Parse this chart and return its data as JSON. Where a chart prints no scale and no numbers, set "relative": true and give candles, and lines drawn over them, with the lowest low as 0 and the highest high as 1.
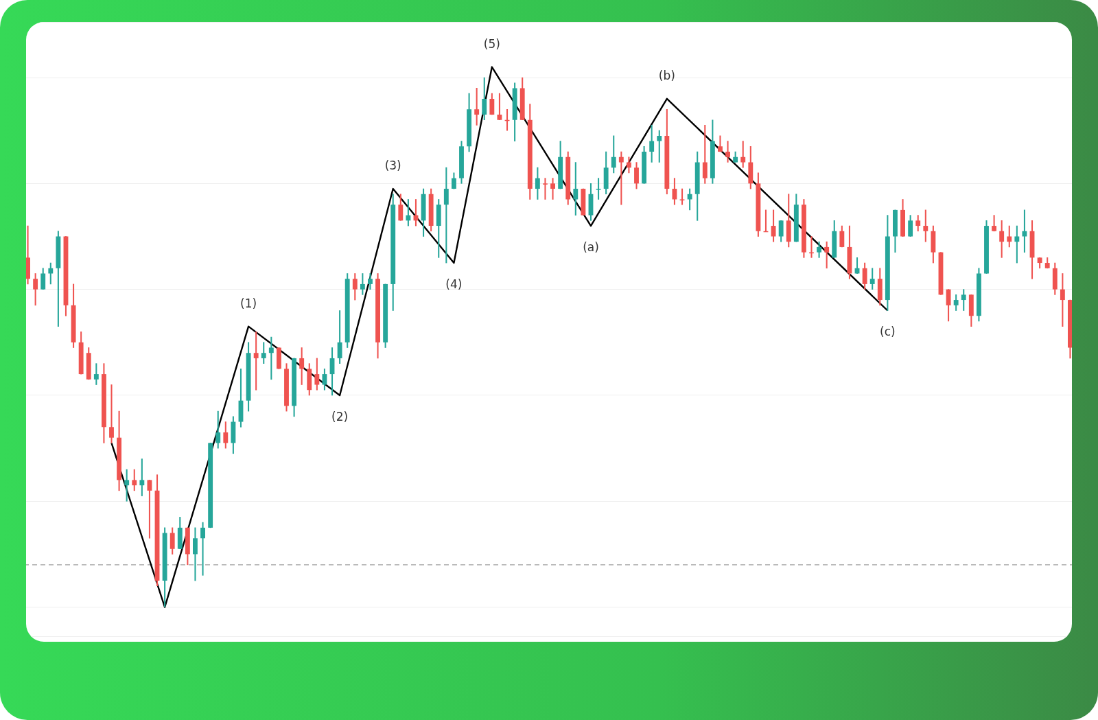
{
  "chart_data": {
    "type": "candlestick",
    "relative": true,
    "grid": "y",
    "legend": false,
    "categories": [
      null,
      null,
      null,
      null,
      null,
      null,
      null,
      null,
      null,
      null,
      null,
      null,
      null,
      null,
      null,
      null,
      null,
      null,
      null,
      null,
      null,
      null,
      null,
      null,
      null,
      null,
      null,
      null,
      null,
      null,
      null,
      null,
      null,
      null,
      null,
      null,
      null,
      null,
      null,
      null,
      null,
      null,
      null,
      null,
      null,
      null,
      null,
      null,
      null,
      null,
      null,
      null,
      null,
      null,
      null,
      null,
      null,
      null,
      null,
      null,
      null,
      null,
      null,
      null,
      null,
      null,
      null,
      null,
      null,
      null,
      null,
      null,
      null,
      null,
      null,
      null,
      null,
      null,
      null,
      null,
      null,
      null,
      null,
      null,
      null,
      null,
      null,
      null,
      null,
      null,
      null,
      null,
      null,
      null,
      null,
      null,
      null,
      null,
      null,
      null,
      null,
      null,
      null,
      null,
      null,
      null,
      null,
      null,
      null,
      null,
      null,
      null,
      null,
      null,
      null,
      null,
      null,
      null,
      null,
      null,
      null,
      null,
      null,
      null,
      null,
      null,
      null,
      null,
      null,
      null,
      null,
      null,
      null,
      null,
      null,
      null,
      null,
      null
    ],
    "ohlc": [
      [
        0.66,
        0.72,
        0.61,
        0.62
      ],
      [
        0.62,
        0.63,
        0.57,
        0.6
      ],
      [
        0.6,
        0.64,
        0.6,
        0.63
      ],
      [
        0.63,
        0.65,
        0.61,
        0.64
      ],
      [
        0.64,
        0.71,
        0.53,
        0.7
      ],
      [
        0.7,
        0.7,
        0.55,
        0.57
      ],
      [
        0.57,
        0.61,
        0.49,
        0.5
      ],
      [
        0.5,
        0.52,
        0.44,
        0.44
      ],
      [
        0.48,
        0.49,
        0.43,
        0.43
      ],
      [
        0.43,
        0.46,
        0.42,
        0.44
      ],
      [
        0.44,
        0.46,
        0.31,
        0.34
      ],
      [
        0.34,
        0.42,
        0.31,
        0.32
      ],
      [
        0.32,
        0.37,
        0.22,
        0.24
      ],
      [
        0.23,
        0.26,
        0.2,
        0.24
      ],
      [
        0.24,
        0.26,
        0.22,
        0.23
      ],
      [
        0.23,
        0.28,
        0.21,
        0.24
      ],
      [
        0.24,
        0.24,
        0.13,
        0.22
      ],
      [
        0.22,
        0.25,
        0.04,
        0.05
      ],
      [
        0.05,
        0.15,
        0.0,
        0.14
      ],
      [
        0.14,
        0.15,
        0.1,
        0.11
      ],
      [
        0.11,
        0.17,
        0.11,
        0.15
      ],
      [
        0.15,
        0.15,
        0.08,
        0.1
      ],
      [
        0.1,
        0.15,
        0.05,
        0.13
      ],
      [
        0.13,
        0.16,
        0.06,
        0.15
      ],
      [
        0.15,
        0.31,
        0.15,
        0.31
      ],
      [
        0.31,
        0.37,
        0.3,
        0.33
      ],
      [
        0.33,
        0.35,
        0.3,
        0.31
      ],
      [
        0.31,
        0.36,
        0.29,
        0.35
      ],
      [
        0.35,
        0.45,
        0.34,
        0.39
      ],
      [
        0.39,
        0.5,
        0.37,
        0.48
      ],
      [
        0.48,
        0.52,
        0.41,
        0.47
      ],
      [
        0.47,
        0.5,
        0.46,
        0.48
      ],
      [
        0.48,
        0.51,
        0.43,
        0.49
      ],
      [
        0.49,
        0.49,
        0.45,
        0.45
      ],
      [
        0.45,
        0.46,
        0.37,
        0.38
      ],
      [
        0.38,
        0.47,
        0.36,
        0.47
      ],
      [
        0.47,
        0.49,
        0.42,
        0.45
      ],
      [
        0.45,
        0.46,
        0.4,
        0.41
      ],
      [
        0.44,
        0.47,
        0.41,
        0.42
      ],
      [
        0.42,
        0.45,
        0.41,
        0.44
      ],
      [
        0.44,
        0.49,
        0.4,
        0.47
      ],
      [
        0.47,
        0.56,
        0.46,
        0.5
      ],
      [
        0.5,
        0.63,
        0.49,
        0.62
      ],
      [
        0.62,
        0.63,
        0.58,
        0.6
      ],
      [
        0.6,
        0.63,
        0.59,
        0.61
      ],
      [
        0.61,
        0.63,
        0.6,
        0.62
      ],
      [
        0.62,
        0.63,
        0.47,
        0.5
      ],
      [
        0.5,
        0.61,
        0.49,
        0.61
      ],
      [
        0.61,
        0.78,
        0.56,
        0.76
      ],
      [
        0.76,
        0.78,
        0.73,
        0.73
      ],
      [
        0.73,
        0.77,
        0.72,
        0.74
      ],
      [
        0.74,
        0.77,
        0.72,
        0.73
      ],
      [
        0.73,
        0.79,
        0.7,
        0.78
      ],
      [
        0.78,
        0.79,
        0.71,
        0.72
      ],
      [
        0.72,
        0.77,
        0.66,
        0.76
      ],
      [
        0.76,
        0.83,
        0.65,
        0.79
      ],
      [
        0.79,
        0.82,
        0.79,
        0.81
      ],
      [
        0.81,
        0.88,
        0.8,
        0.87
      ],
      [
        0.87,
        0.97,
        0.86,
        0.94
      ],
      [
        0.94,
        0.98,
        0.91,
        0.93
      ],
      [
        0.93,
        1.0,
        0.92,
        0.96
      ],
      [
        0.96,
        0.97,
        0.93,
        0.93
      ],
      [
        0.93,
        0.97,
        0.92,
        0.92
      ],
      [
        0.92,
        0.94,
        0.9,
        0.92
      ],
      [
        0.92,
        0.99,
        0.88,
        0.98
      ],
      [
        0.98,
        1.0,
        0.92,
        0.92
      ],
      [
        0.92,
        0.95,
        0.77,
        0.79
      ],
      [
        0.79,
        0.83,
        0.77,
        0.81
      ],
      [
        0.8,
        0.81,
        0.77,
        0.8
      ],
      [
        0.8,
        0.81,
        0.77,
        0.79
      ],
      [
        0.79,
        0.88,
        0.79,
        0.85
      ],
      [
        0.85,
        0.86,
        0.76,
        0.77
      ],
      [
        0.77,
        0.84,
        0.74,
        0.79
      ],
      [
        0.79,
        0.79,
        0.74,
        0.74
      ],
      [
        0.74,
        0.8,
        0.73,
        0.78
      ],
      [
        0.79,
        0.81,
        0.77,
        0.79
      ],
      [
        0.79,
        0.86,
        0.78,
        0.83
      ],
      [
        0.83,
        0.89,
        0.82,
        0.85
      ],
      [
        0.85,
        0.86,
        0.76,
        0.84
      ],
      [
        0.84,
        0.85,
        0.82,
        0.83
      ],
      [
        0.83,
        0.84,
        0.79,
        0.8
      ],
      [
        0.8,
        0.87,
        0.8,
        0.86
      ],
      [
        0.86,
        0.91,
        0.84,
        0.88
      ],
      [
        0.88,
        0.9,
        0.84,
        0.89
      ],
      [
        0.89,
        0.94,
        0.78,
        0.79
      ],
      [
        0.79,
        0.81,
        0.76,
        0.77
      ],
      [
        0.77,
        0.79,
        0.76,
        0.77
      ],
      [
        0.77,
        0.79,
        0.75,
        0.78
      ],
      [
        0.78,
        0.86,
        0.73,
        0.84
      ],
      [
        0.84,
        0.91,
        0.8,
        0.81
      ],
      [
        0.81,
        0.92,
        0.8,
        0.88
      ],
      [
        0.87,
        0.89,
        0.86,
        0.86
      ],
      [
        0.86,
        0.88,
        0.84,
        0.85
      ],
      [
        0.84,
        0.86,
        0.84,
        0.85
      ],
      [
        0.85,
        0.88,
        0.83,
        0.84
      ],
      [
        0.84,
        0.87,
        0.79,
        0.8
      ],
      [
        0.8,
        0.82,
        0.7,
        0.71
      ],
      [
        0.71,
        0.75,
        0.71,
        0.71
      ],
      [
        0.72,
        0.75,
        0.69,
        0.7
      ],
      [
        0.7,
        0.73,
        0.69,
        0.73
      ],
      [
        0.73,
        0.78,
        0.68,
        0.69
      ],
      [
        0.69,
        0.78,
        0.69,
        0.76
      ],
      [
        0.76,
        0.77,
        0.66,
        0.67
      ],
      [
        0.67,
        0.7,
        0.66,
        0.67
      ],
      [
        0.67,
        0.69,
        0.66,
        0.68
      ],
      [
        0.68,
        0.69,
        0.64,
        0.67
      ],
      [
        0.66,
        0.73,
        0.66,
        0.71
      ],
      [
        0.71,
        0.72,
        0.68,
        0.68
      ],
      [
        0.68,
        0.72,
        0.62,
        0.63
      ],
      [
        0.63,
        0.66,
        0.63,
        0.64
      ],
      [
        0.64,
        0.65,
        0.6,
        0.61
      ],
      [
        0.61,
        0.64,
        0.6,
        0.62
      ],
      [
        0.62,
        0.64,
        0.57,
        0.58
      ],
      [
        0.58,
        0.74,
        0.56,
        0.7
      ],
      [
        0.7,
        0.75,
        0.67,
        0.75
      ],
      [
        0.75,
        0.77,
        0.7,
        0.7
      ],
      [
        0.7,
        0.74,
        0.7,
        0.73
      ],
      [
        0.73,
        0.74,
        0.71,
        0.72
      ],
      [
        0.72,
        0.75,
        0.69,
        0.71
      ],
      [
        0.71,
        0.72,
        0.65,
        0.67
      ],
      [
        0.67,
        0.67,
        0.59,
        0.59
      ],
      [
        0.6,
        0.6,
        0.54,
        0.57
      ],
      [
        0.57,
        0.59,
        0.56,
        0.58
      ],
      [
        0.58,
        0.6,
        0.56,
        0.59
      ],
      [
        0.59,
        0.59,
        0.53,
        0.55
      ],
      [
        0.55,
        0.64,
        0.54,
        0.63
      ],
      [
        0.63,
        0.73,
        0.63,
        0.72
      ],
      [
        0.72,
        0.74,
        0.71,
        0.71
      ],
      [
        0.71,
        0.73,
        0.66,
        0.69
      ],
      [
        0.7,
        0.72,
        0.68,
        0.69
      ],
      [
        0.69,
        0.72,
        0.65,
        0.7
      ],
      [
        0.7,
        0.75,
        0.67,
        0.71
      ],
      [
        0.71,
        0.73,
        0.62,
        0.66
      ],
      [
        0.66,
        0.66,
        0.64,
        0.65
      ],
      [
        0.65,
        0.66,
        0.64,
        0.64
      ],
      [
        0.64,
        0.65,
        0.59,
        0.6
      ],
      [
        0.6,
        0.63,
        0.53,
        0.58
      ],
      [
        0.58,
        0.58,
        0.47,
        0.49
      ]
    ],
    "colors": [
      "#ef5350",
      "#ef5350",
      "#26a69a",
      "#26a69a",
      "#26a69a",
      "#ef5350",
      "#ef5350",
      "#ef5350",
      "#ef5350",
      "#26a69a",
      "#ef5350",
      "#ef5350",
      "#ef5350",
      "#26a69a",
      "#ef5350",
      "#26a69a",
      "#ef5350",
      "#ef5350",
      "#26a69a",
      "#ef5350",
      "#26a69a",
      "#ef5350",
      "#26a69a",
      "#26a69a",
      "#26a69a",
      "#26a69a",
      "#ef5350",
      "#26a69a",
      "#26a69a",
      "#26a69a",
      "#ef5350",
      "#26a69a",
      "#26a69a",
      "#ef5350",
      "#ef5350",
      "#26a69a",
      "#ef5350",
      "#ef5350",
      "#ef5350",
      "#26a69a",
      "#26a69a",
      "#26a69a",
      "#26a69a",
      "#ef5350",
      "#26a69a",
      "#26a69a",
      "#ef5350",
      "#26a69a",
      "#26a69a",
      "#ef5350",
      "#26a69a",
      "#ef5350",
      "#26a69a",
      "#ef5350",
      "#26a69a",
      "#26a69a",
      "#26a69a",
      "#26a69a",
      "#26a69a",
      "#ef5350",
      "#26a69a",
      "#ef5350",
      "#ef5350",
      "#ef5350",
      "#26a69a",
      "#ef5350",
      "#ef5350",
      "#26a69a",
      "#ef5350",
      "#ef5350",
      "#26a69a",
      "#ef5350",
      "#26a69a",
      "#ef5350",
      "#26a69a",
      "#26a69a",
      "#26a69a",
      "#26a69a",
      "#ef5350",
      "#ef5350",
      "#ef5350",
      "#26a69a",
      "#26a69a",
      "#26a69a",
      "#ef5350",
      "#ef5350",
      "#ef5350",
      "#26a69a",
      "#26a69a",
      "#ef5350",
      "#26a69a",
      "#ef5350",
      "#ef5350",
      "#26a69a",
      "#ef5350",
      "#ef5350",
      "#ef5350",
      "#ef5350",
      "#ef5350",
      "#26a69a",
      "#ef5350",
      "#26a69a",
      "#ef5350",
      "#ef5350",
      "#26a69a",
      "#ef5350",
      "#26a69a",
      "#ef5350",
      "#ef5350",
      "#26a69a",
      "#ef5350",
      "#26a69a",
      "#ef5350",
      "#26a69a",
      "#26a69a",
      "#ef5350",
      "#26a69a",
      "#ef5350",
      "#ef5350",
      "#ef5350",
      "#ef5350",
      "#ef5350",
      "#26a69a",
      "#26a69a",
      "#ef5350",
      "#26a69a",
      "#26a69a",
      "#ef5350",
      "#ef5350",
      "#ef5350",
      "#26a69a",
      "#26a69a",
      "#ef5350",
      "#ef5350",
      "#ef5350",
      "#ef5350",
      "#ef5350",
      "#ef5350"
    ],
    "series": [
      {
        "type": "line",
        "color": "#000000",
        "values": [
          null,
          null,
          null,
          null,
          null,
          null,
          null,
          null,
          null,
          null,
          null,
          0.31,
          null,
          null,
          null,
          null,
          null,
          null,
          0.0,
          null,
          null,
          null,
          null,
          null,
          null,
          null,
          null,
          null,
          null,
          0.53,
          null,
          null,
          null,
          null,
          null,
          null,
          null,
          null,
          null,
          null,
          null,
          0.4,
          null,
          null,
          null,
          null,
          null,
          null,
          0.79,
          null,
          null,
          null,
          null,
          null,
          null,
          null,
          0.65,
          null,
          null,
          null,
          null,
          1.02,
          null,
          null,
          null,
          null,
          null,
          null,
          null,
          null,
          null,
          null,
          null,
          null,
          0.72,
          null,
          null,
          null,
          null,
          null,
          null,
          null,
          null,
          null,
          0.96,
          null,
          null,
          null,
          null,
          null,
          null,
          null,
          null,
          null,
          null,
          null,
          null,
          null,
          null,
          null,
          null,
          null,
          null,
          null,
          null,
          null,
          null,
          null,
          null,
          null,
          null,
          null,
          null,
          0.56,
          null,
          null,
          null,
          null,
          null,
          null,
          null,
          null,
          null,
          null,
          null,
          null,
          null,
          null,
          null,
          null,
          null,
          null,
          null,
          null,
          null,
          null,
          null,
          null
        ]
      }
    ],
    "annotations": [
      {
        "text": "(1)",
        "y": 0.53
      },
      {
        "text": "(2)",
        "y": 0.4
      },
      {
        "text": "(3)",
        "y": 0.79
      },
      {
        "text": "(4)",
        "y": 0.65
      },
      {
        "text": "(5)",
        "y": 1.02
      },
      {
        "text": "(a)",
        "y": 0.72
      },
      {
        "text": "(b)",
        "y": 0.96
      },
      {
        "text": "(c)",
        "y": 0.56
      }
    ],
    "ref_lines": [
      {
        "axis": "y",
        "value": 0.08,
        "color": "#9e9e9e",
        "line_style": "dashed"
      }
    ]
  }
}
